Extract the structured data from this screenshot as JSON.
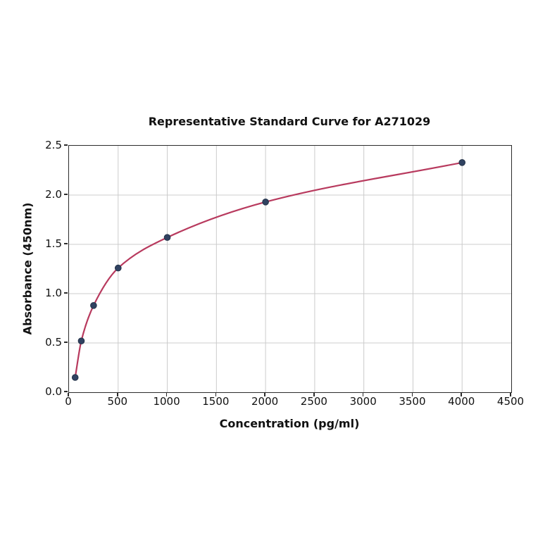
{
  "title": "Representative Standard Curve for A271029",
  "chart_data": {
    "type": "scatter",
    "subtype": "standard-curve-with-fitted-line",
    "title": "Representative Standard Curve for A271029",
    "xlabel": "Concentration (pg/ml)",
    "ylabel": "Absorbance (450nm)",
    "x": [
      62.5,
      125,
      250,
      500,
      1000,
      2000,
      4000
    ],
    "y": [
      0.15,
      0.52,
      0.88,
      1.26,
      1.57,
      1.93,
      2.33
    ],
    "xlim": [
      0,
      4500
    ],
    "ylim": [
      0,
      2.5
    ],
    "x_ticks": [
      "0",
      "500",
      "1000",
      "1500",
      "2000",
      "2500",
      "3000",
      "3500",
      "4000",
      "4500"
    ],
    "y_ticks": [
      "0.0",
      "0.5",
      "1.0",
      "1.5",
      "2.0",
      "2.5"
    ],
    "grid": true,
    "legend": "none",
    "colors": {
      "curve": "#b83a5e",
      "marker": "#304261",
      "marker_edge": "#243349",
      "grid": "#cccccc",
      "spine": "#2b2b2b",
      "text": "#111111",
      "background": "#ffffff"
    }
  }
}
